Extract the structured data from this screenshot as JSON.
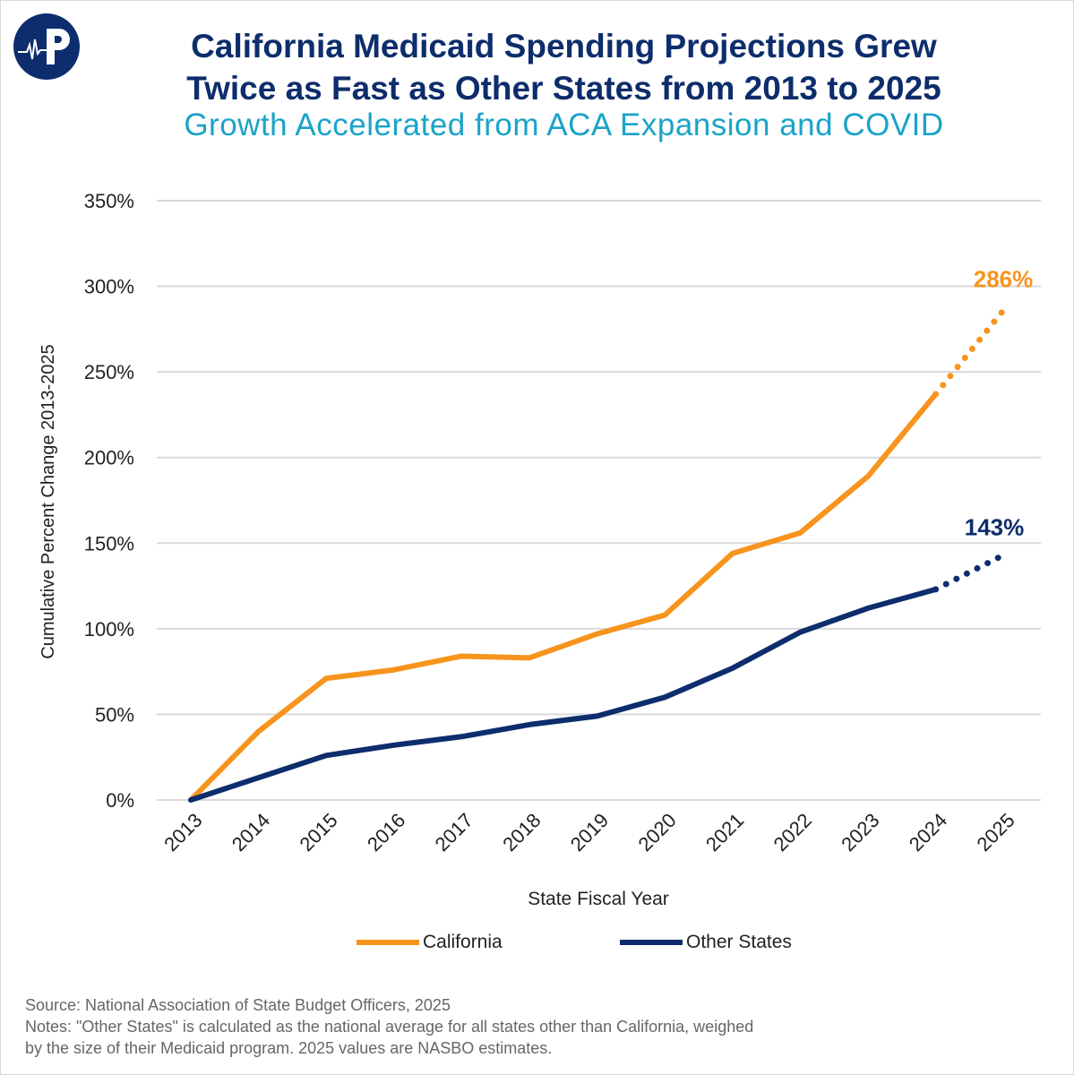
{
  "header": {
    "title_line1": "California Medicaid Spending Projections Grew",
    "title_line2": "Twice as Fast as Other States from 2013 to 2025",
    "subtitle": "Growth Accelerated from ACA Expansion and COVID",
    "logo_letter": "P"
  },
  "chart_data": {
    "type": "line",
    "title": "California Medicaid Spending Projections Grew Twice as Fast as Other States from 2013 to 2025",
    "subtitle": "Growth Accelerated from ACA Expansion and COVID",
    "xlabel": "State Fiscal Year",
    "ylabel": "Cumulative Percent Change 2013-2025",
    "categories": [
      "2013",
      "2014",
      "2015",
      "2016",
      "2017",
      "2018",
      "2019",
      "2020",
      "2021",
      "2022",
      "2023",
      "2024",
      "2025"
    ],
    "yticks": [
      "0%",
      "50%",
      "100%",
      "150%",
      "200%",
      "250%",
      "300%",
      "350%"
    ],
    "ylim": [
      0,
      350
    ],
    "grid": true,
    "legend_position": "bottom",
    "estimated_categories": [
      "2025"
    ],
    "series": [
      {
        "name": "California",
        "color": "#f7941d",
        "values": [
          0,
          40,
          71,
          76,
          84,
          83,
          97,
          108,
          144,
          156,
          189,
          237,
          286
        ],
        "end_label": "286%"
      },
      {
        "name": "Other States",
        "color": "#0d2d6c",
        "values": [
          0,
          13,
          26,
          32,
          37,
          44,
          49,
          60,
          77,
          98,
          112,
          123,
          143
        ],
        "end_label": "143%"
      }
    ]
  },
  "footer": {
    "source": "Source: National Association of State Budget Officers, 2025",
    "notes_line1": "Notes: \"Other States\" is calculated as the national average for all states other than California, weighed",
    "notes_line2": "by the size of their Medicaid program. 2025 values are NASBO estimates."
  }
}
